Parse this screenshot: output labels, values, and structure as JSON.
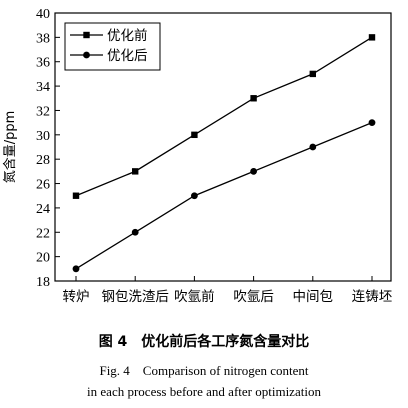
{
  "chart_data": {
    "type": "line",
    "categories": [
      "转炉",
      "钢包洗渣后",
      "吹氩前",
      "吹氩后",
      "中间包",
      "连铸坯"
    ],
    "series": [
      {
        "name": "优化前",
        "marker": "square",
        "values": [
          25,
          27,
          30,
          33,
          35,
          38
        ]
      },
      {
        "name": "优化后",
        "marker": "circle",
        "values": [
          19,
          22,
          25,
          27,
          29,
          31
        ]
      }
    ],
    "ylabel": "氮含量/ppm",
    "ylim": [
      18,
      40
    ],
    "yticks": [
      18,
      20,
      22,
      24,
      26,
      28,
      30,
      32,
      34,
      36,
      38,
      40
    ],
    "grid": false,
    "legend": "top-left",
    "colors": {
      "line": "#000000",
      "background": "#ffffff"
    }
  },
  "caption": {
    "cn": "图 4　优化前后各工序氮含量对比",
    "en_line1": "Fig. 4　Comparison of nitrogen content",
    "en_line2": "in each process before and after optimization"
  }
}
